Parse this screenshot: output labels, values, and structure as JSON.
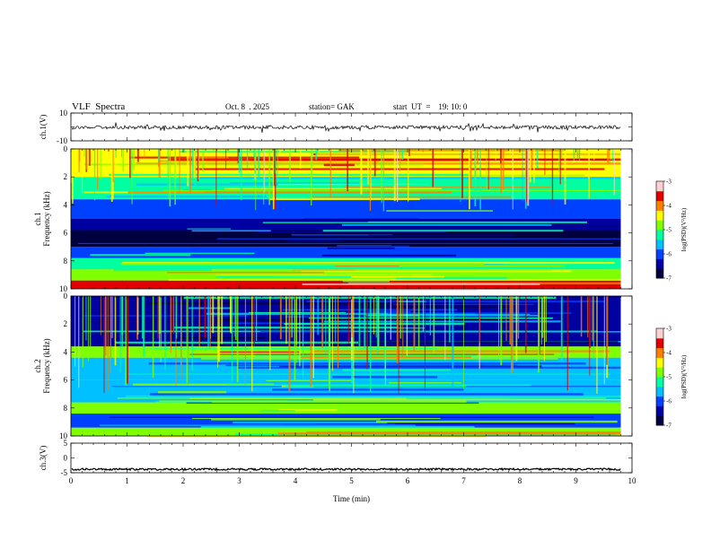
{
  "header": {
    "title": "VLF  Spectra",
    "date": "Oct. 8  . 2025",
    "station": "station= GAK",
    "start": "start  UT  =    19: 10: 0"
  },
  "colors": {
    "scale": [
      "#000040",
      "#0000a0",
      "#0040ff",
      "#00c0ff",
      "#00ffa0",
      "#80ff00",
      "#ffff00",
      "#ff8000",
      "#e00000",
      "#ffd0d0"
    ],
    "trace": "#000000"
  },
  "chart_data": [
    {
      "type": "line",
      "name": "ch.1 waveform",
      "ylabel": "ch.1(V)",
      "ylim": [
        -10,
        10
      ],
      "yticks": [
        "10",
        "-10"
      ],
      "xlim": [
        0,
        10
      ],
      "baseline": 0,
      "note": "noise trace around ~-1 V"
    },
    {
      "type": "heatmap",
      "ylabel": "ch.1\nFrequency  (kHz)",
      "ylim": [
        0,
        10
      ],
      "yticks": [
        "0",
        "2",
        "4",
        "6",
        "8",
        "10"
      ],
      "xlim": [
        0,
        10
      ],
      "data_end_min": 9.8,
      "colorbar": {
        "label": "log(PSD)(V²/Hz)",
        "ticks": [
          "-3",
          "-4",
          "-5",
          "-6",
          "-7"
        ],
        "range": [
          -7,
          -3
        ]
      },
      "bands_khz": [
        {
          "from": 0,
          "to": 0.6,
          "level": -3.8
        },
        {
          "from": 0.6,
          "to": 1.4,
          "level": -5.0
        },
        {
          "from": 1.4,
          "to": 2.2,
          "level": -5.2
        },
        {
          "from": 2.2,
          "to": 3.0,
          "level": -6.0
        },
        {
          "from": 3.0,
          "to": 4.2,
          "level": -6.8
        },
        {
          "from": 4.2,
          "to": 5.0,
          "level": -6.3
        },
        {
          "from": 5.0,
          "to": 6.4,
          "level": -6.0
        },
        {
          "from": 6.4,
          "to": 8.0,
          "level": -5.2
        },
        {
          "from": 8.0,
          "to": 10.0,
          "level": -4.6
        }
      ]
    },
    {
      "type": "heatmap",
      "ylabel": "ch.2\nFrequency  (kHz)",
      "ylim": [
        0,
        10
      ],
      "yticks": [
        "0",
        "2",
        "4",
        "6",
        "8",
        "10"
      ],
      "xlim": [
        0,
        10
      ],
      "data_end_min": 9.8,
      "colorbar": {
        "label": "log(PSD)(V²/Hz)",
        "ticks": [
          "-3",
          "-4",
          "-5",
          "-6",
          "-7"
        ],
        "range": [
          -7,
          -3
        ]
      },
      "bands_khz": [
        {
          "from": 0,
          "to": 0.6,
          "level": -4.8
        },
        {
          "from": 0.6,
          "to": 1.6,
          "level": -6.0
        },
        {
          "from": 1.6,
          "to": 2.4,
          "level": -5.0
        },
        {
          "from": 2.4,
          "to": 4.0,
          "level": -5.6
        },
        {
          "from": 4.0,
          "to": 5.6,
          "level": -5.8
        },
        {
          "from": 5.6,
          "to": 6.4,
          "level": -4.8
        },
        {
          "from": 6.4,
          "to": 10.0,
          "level": -6.3
        }
      ]
    },
    {
      "type": "line",
      "name": "ch.3 waveform",
      "ylabel": "ch.3(V)",
      "ylim": [
        -5,
        5
      ],
      "yticks": [
        "5",
        "0",
        "-5"
      ],
      "xlim": [
        0,
        10
      ],
      "baseline": -2,
      "xlabel": "Time  (min)",
      "xticks": [
        "0",
        "1",
        "2",
        "3",
        "4",
        "5",
        "6",
        "7",
        "8",
        "9",
        "10"
      ]
    }
  ]
}
